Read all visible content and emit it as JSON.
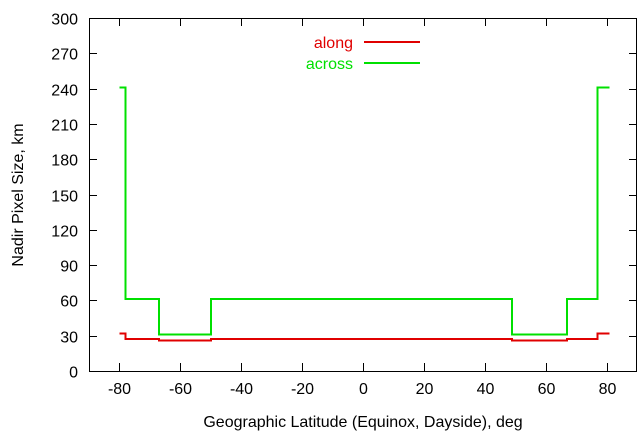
{
  "chart_data": {
    "type": "line",
    "title": "",
    "xlabel": "Geographic Latitude (Equinox, Dayside), deg",
    "ylabel": "Nadir Pixel Size, km",
    "xlim": [
      -90,
      90
    ],
    "ylim": [
      0,
      300
    ],
    "x_ticks": [
      -80,
      -60,
      -40,
      -20,
      0,
      20,
      40,
      60,
      80
    ],
    "x_tick_labels": [
      "-80",
      "-60",
      "-40",
      "-20",
      "0",
      "20",
      "40",
      "60",
      "80"
    ],
    "y_ticks": [
      0,
      30,
      60,
      90,
      120,
      150,
      180,
      210,
      240,
      270,
      300
    ],
    "y_tick_labels": [
      "0",
      "30",
      "60",
      "90",
      "120",
      "150",
      "180",
      "210",
      "240",
      "270",
      "300"
    ],
    "grid": false,
    "legend_position": "top-center",
    "step": true,
    "series": [
      {
        "name": "along",
        "color": "#e00000",
        "x": [
          -80,
          -78,
          -67,
          -50,
          49,
          67,
          77,
          81
        ],
        "y": [
          32,
          27,
          26,
          27,
          26,
          27,
          32,
          32
        ]
      },
      {
        "name": "across",
        "color": "#00e000",
        "x": [
          -80,
          -78,
          -67,
          -50,
          49,
          67,
          77,
          81
        ],
        "y": [
          241,
          61,
          31,
          61,
          31,
          61,
          241,
          241
        ]
      }
    ]
  }
}
